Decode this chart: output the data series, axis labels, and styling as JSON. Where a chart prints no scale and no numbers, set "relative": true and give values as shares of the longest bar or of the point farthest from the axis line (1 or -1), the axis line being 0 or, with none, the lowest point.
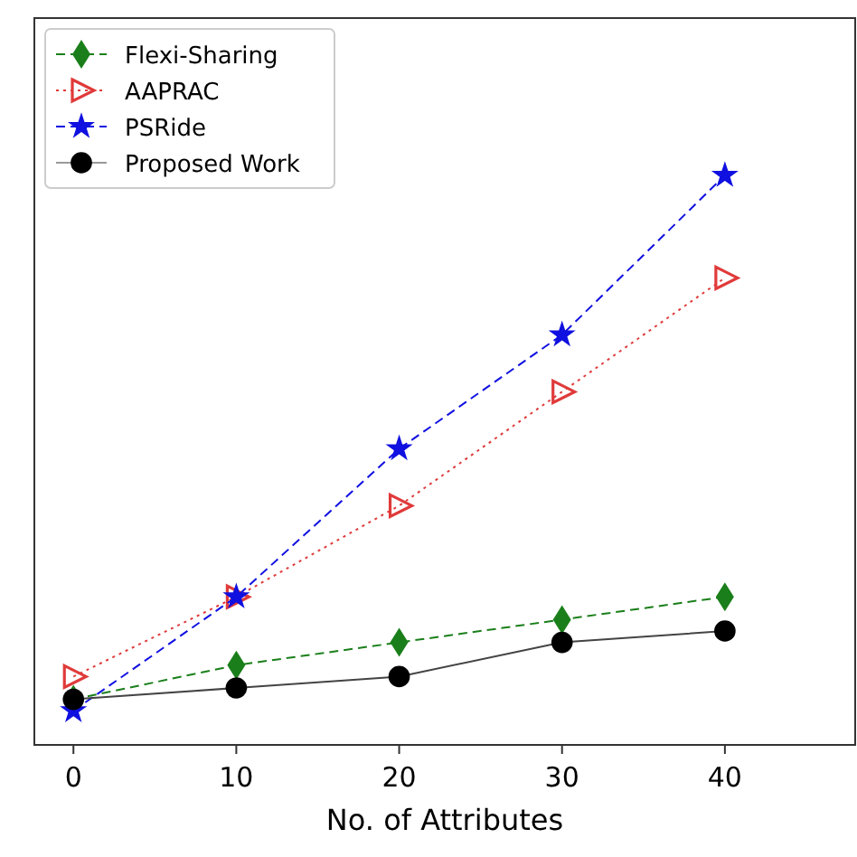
{
  "chart_data": {
    "type": "line",
    "xlabel": "No. of Attributes",
    "relative": true,
    "x": [
      0,
      10,
      20,
      30,
      40
    ],
    "xlim": [
      -2.4,
      48
    ],
    "xticks": [
      0,
      10,
      20,
      30,
      40
    ],
    "legend": "top left",
    "grid": false,
    "series": [
      {
        "name": "Flexi-Sharing",
        "color": "#1a7f1a",
        "marker": "diamond",
        "line_style": "dashed",
        "values": [
          0.08,
          0.14,
          0.18,
          0.22,
          0.26
        ]
      },
      {
        "name": "AAPRAC",
        "color": "#e03a3a",
        "marker": "triangle",
        "line_style": "dotted",
        "values": [
          0.12,
          0.26,
          0.42,
          0.62,
          0.82
        ]
      },
      {
        "name": "PSRide",
        "color": "#1010e0",
        "marker": "star",
        "line_style": "dashed",
        "values": [
          0.06,
          0.26,
          0.52,
          0.72,
          1
        ]
      },
      {
        "name": "Proposed Work",
        "color": "#000000",
        "marker": "circle",
        "line_style": "solid",
        "values": [
          0.08,
          0.1,
          0.12,
          0.18,
          0.2
        ]
      }
    ]
  }
}
